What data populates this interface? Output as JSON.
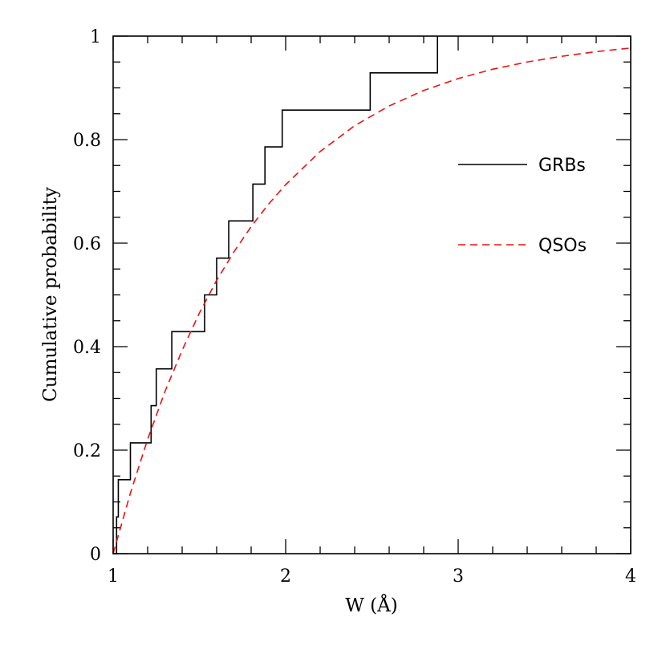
{
  "chart_data": {
    "type": "line",
    "title": "",
    "xlabel": "W (Å)",
    "ylabel": "Cumulative probability",
    "xlim": [
      1,
      4
    ],
    "ylim": [
      0,
      1
    ],
    "x_ticks": [
      "1",
      "2",
      "3",
      "4"
    ],
    "y_ticks": [
      "0",
      "0.2",
      "0.4",
      "0.6",
      "0.8",
      "1"
    ],
    "grid": false,
    "legend_position": "right",
    "series": [
      {
        "name": "GRBs",
        "style": "step",
        "color": "#000000",
        "x": [
          1.0,
          1.02,
          1.03,
          1.1,
          1.22,
          1.25,
          1.34,
          1.53,
          1.6,
          1.67,
          1.81,
          1.88,
          1.98,
          2.49,
          2.88
        ],
        "y": [
          0.0,
          0.071,
          0.143,
          0.214,
          0.286,
          0.357,
          0.429,
          0.5,
          0.571,
          0.643,
          0.714,
          0.786,
          0.857,
          0.929,
          1.0
        ]
      },
      {
        "name": "QSOs",
        "style": "dashed",
        "color": "#ee1111",
        "x": [
          1.0,
          1.1,
          1.2,
          1.3,
          1.4,
          1.5,
          1.6,
          1.7,
          1.8,
          1.9,
          2.0,
          2.2,
          2.4,
          2.6,
          2.8,
          3.0,
          3.2,
          3.4,
          3.6,
          3.8,
          4.0
        ],
        "y": [
          0.0,
          0.117,
          0.221,
          0.313,
          0.393,
          0.465,
          0.528,
          0.583,
          0.632,
          0.675,
          0.713,
          0.777,
          0.827,
          0.865,
          0.895,
          0.918,
          0.936,
          0.95,
          0.961,
          0.97,
          0.977
        ]
      }
    ]
  }
}
